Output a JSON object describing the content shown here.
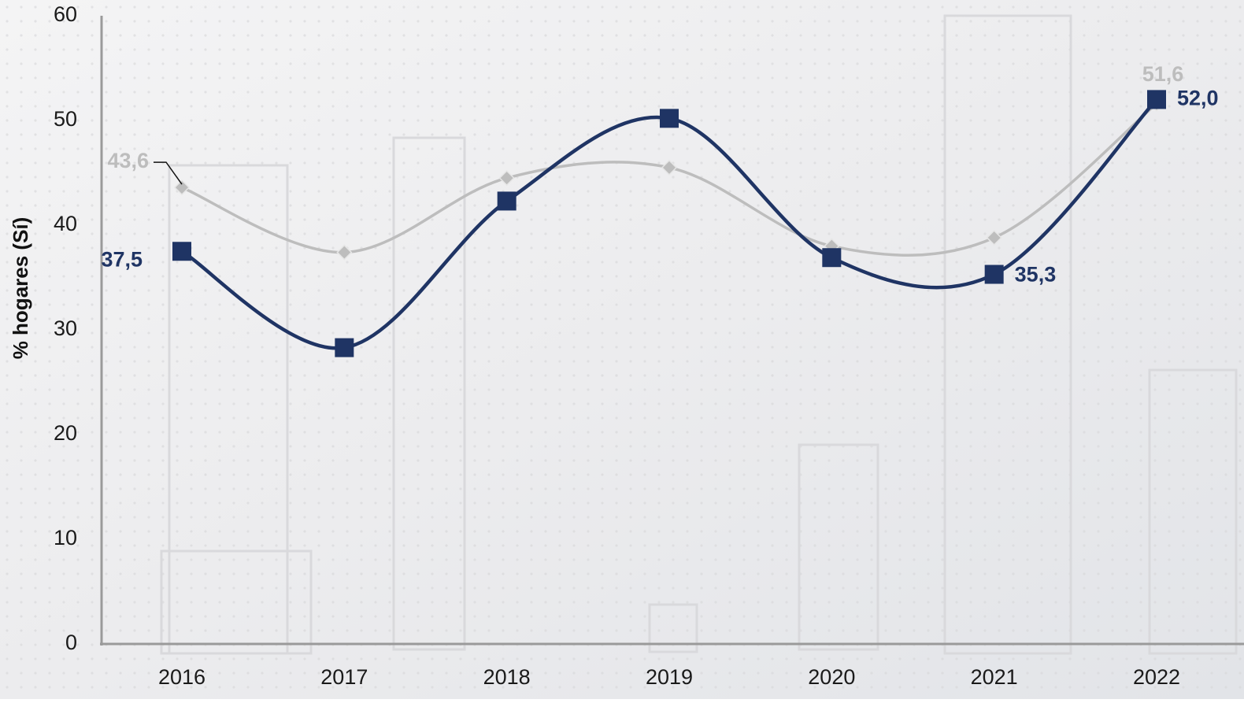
{
  "chart_data": {
    "type": "line",
    "y_label": "% hogares (Sí)",
    "categories": [
      "2016",
      "2017",
      "2018",
      "2019",
      "2020",
      "2021",
      "2022"
    ],
    "series": [
      {
        "color": "#bdbdbd",
        "marker": "diamond",
        "values": [
          43.6,
          37.4,
          44.5,
          45.5,
          38.0,
          38.8,
          51.6
        ],
        "value_labels": [
          "43,6",
          null,
          null,
          null,
          null,
          null,
          "51,6"
        ]
      },
      {
        "color": "#1f3464",
        "marker": "square",
        "values": [
          37.5,
          28.3,
          42.3,
          50.2,
          36.9,
          35.3,
          52.0
        ],
        "value_labels": [
          "37,5",
          null,
          null,
          null,
          null,
          "35,3",
          "52,0"
        ]
      }
    ],
    "ylim": [
      0,
      60
    ],
    "yticks": [
      0,
      10,
      20,
      30,
      40,
      50,
      60
    ],
    "smooth": true
  }
}
